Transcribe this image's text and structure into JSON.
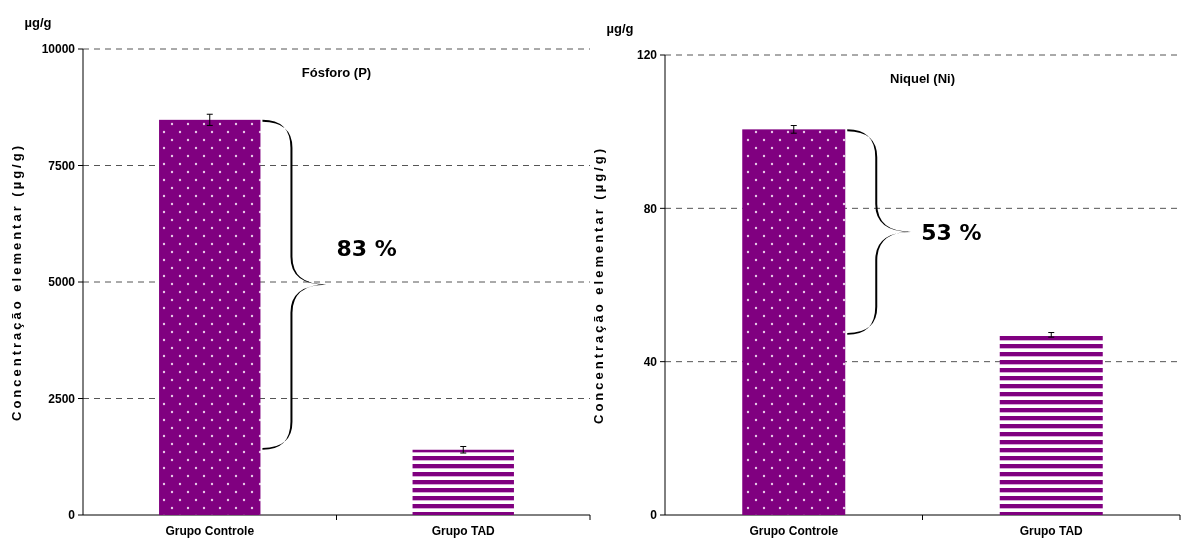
{
  "chart_data": [
    {
      "type": "bar",
      "title": "Fósforo (P)",
      "ylabel": "Concentração elementar (µg/g)",
      "categories": [
        "Grupo Controle",
        "Grupo TAD"
      ],
      "values": [
        8480,
        1400
      ],
      "errors": [
        120,
        70
      ],
      "colors": [
        "#800080",
        "#800080"
      ],
      "ylim": [
        0,
        10000
      ],
      "yticks": [
        0,
        2500,
        5000,
        7500,
        10000
      ],
      "grid": "y",
      "annotations": [
        "µg/g",
        "83 %"
      ]
    },
    {
      "type": "bar",
      "title": "Niquel (Ni)",
      "ylabel": "Concentração elementar (µg/g)",
      "categories": [
        "Grupo Controle",
        "Grupo TAD"
      ],
      "values": [
        100.6,
        47
      ],
      "errors": [
        1,
        0.6
      ],
      "colors": [
        "#800080",
        "#800080"
      ],
      "ylim": [
        0,
        120
      ],
      "yticks": [
        0,
        40,
        80,
        120
      ],
      "grid": "y",
      "annotations": [
        "µg/g",
        "53 %"
      ]
    }
  ]
}
